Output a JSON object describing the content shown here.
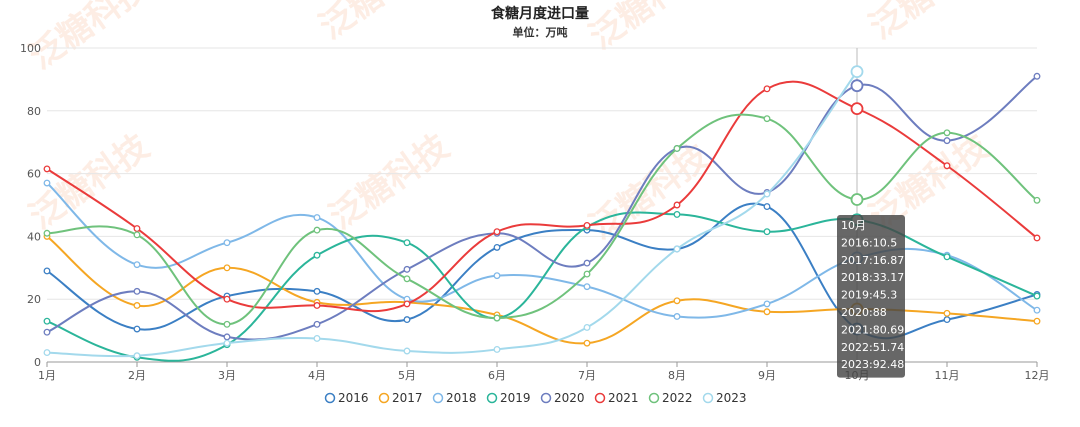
{
  "chart_data": {
    "type": "line",
    "title": "食糖月度进口量",
    "subtitle": "单位：万吨",
    "categories": [
      "1月",
      "2月",
      "3月",
      "4月",
      "5月",
      "6月",
      "7月",
      "8月",
      "9月",
      "10月",
      "11月",
      "12月"
    ],
    "ylim": [
      0,
      100
    ],
    "yticks": [
      0,
      20,
      40,
      60,
      80,
      100
    ],
    "grid": true,
    "legend_position": "bottom",
    "series": [
      {
        "name": "2016",
        "color": "#3b7fc4",
        "values": [
          29,
          10.5,
          21,
          22.5,
          13.5,
          36.5,
          42,
          36,
          49.5,
          10.5,
          13.5,
          21.5
        ]
      },
      {
        "name": "2017",
        "color": "#f5a623",
        "values": [
          40,
          18,
          30,
          19,
          19,
          15,
          6,
          19.5,
          16,
          16.87,
          15.5,
          13
        ]
      },
      {
        "name": "2018",
        "color": "#7fb8e8",
        "values": [
          57,
          31,
          38,
          46,
          20,
          27.5,
          24,
          14.5,
          18.5,
          33.17,
          34,
          16.5
        ]
      },
      {
        "name": "2019",
        "color": "#2bb59a",
        "values": [
          13,
          1.5,
          5.5,
          34,
          38,
          14,
          43,
          47,
          41.5,
          45.3,
          33.5,
          21
        ]
      },
      {
        "name": "2020",
        "color": "#6d7dbf",
        "values": [
          9.5,
          22.5,
          8,
          12,
          29.5,
          41,
          31.5,
          68,
          54,
          88,
          70.5,
          91
        ]
      },
      {
        "name": "2021",
        "color": "#ea3b3b",
        "values": [
          61.5,
          42.5,
          20,
          18,
          18.5,
          41.5,
          43.5,
          50,
          87,
          80.69,
          62.5,
          39.5
        ]
      },
      {
        "name": "2022",
        "color": "#6fc27c",
        "values": [
          41,
          40.5,
          12,
          42,
          26.5,
          14,
          28,
          68,
          77.5,
          51.74,
          73,
          51.5
        ]
      },
      {
        "name": "2023",
        "color": "#a3d9ec",
        "values": [
          3,
          2,
          6,
          7.5,
          3.5,
          4,
          11,
          36,
          53.5,
          92.48,
          null,
          null
        ]
      }
    ],
    "tooltip": {
      "index": 9,
      "header": "10月",
      "lines": [
        "2016:10.5",
        "2017:16.87",
        "2018:33.17",
        "2019:45.3",
        "2020:88",
        "2021:80.69",
        "2022:51.74",
        "2023:92.48"
      ]
    },
    "watermark": "泛糖科技"
  }
}
